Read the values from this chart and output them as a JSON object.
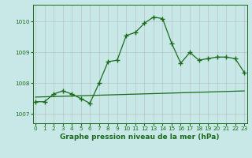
{
  "xlabel": "Graphe pression niveau de la mer (hPa)",
  "x_ticks": [
    0,
    1,
    2,
    3,
    4,
    5,
    6,
    7,
    8,
    9,
    10,
    11,
    12,
    13,
    14,
    15,
    16,
    17,
    18,
    19,
    20,
    21,
    22,
    23
  ],
  "y_ticks": [
    1007,
    1008,
    1009,
    1010
  ],
  "ylim": [
    1006.7,
    1010.55
  ],
  "xlim": [
    -0.3,
    23.3
  ],
  "background_color": "#c8e8e8",
  "grid_color": "#b0b0b0",
  "line_color": "#1a6b1a",
  "series1_x": [
    0,
    1,
    2,
    3,
    4,
    5,
    6,
    7,
    8,
    9,
    10,
    11,
    12,
    13,
    14,
    15,
    16,
    17,
    18,
    19,
    20,
    21,
    22,
    23
  ],
  "series1_y": [
    1007.4,
    1007.4,
    1007.65,
    1007.75,
    1007.65,
    1007.5,
    1007.35,
    1008.0,
    1008.7,
    1008.75,
    1009.55,
    1009.65,
    1009.95,
    1010.15,
    1010.1,
    1009.3,
    1008.65,
    1009.0,
    1008.75,
    1008.8,
    1008.85,
    1008.85,
    1008.8,
    1008.35
  ],
  "trend_x": [
    0,
    23
  ],
  "trend_y": [
    1007.55,
    1007.75
  ],
  "marker": "+",
  "markersize": 4,
  "markeredgewidth": 1.0,
  "linewidth": 0.9,
  "tick_fontsize": 5.2,
  "label_fontsize": 6.5,
  "label_fontweight": "bold"
}
